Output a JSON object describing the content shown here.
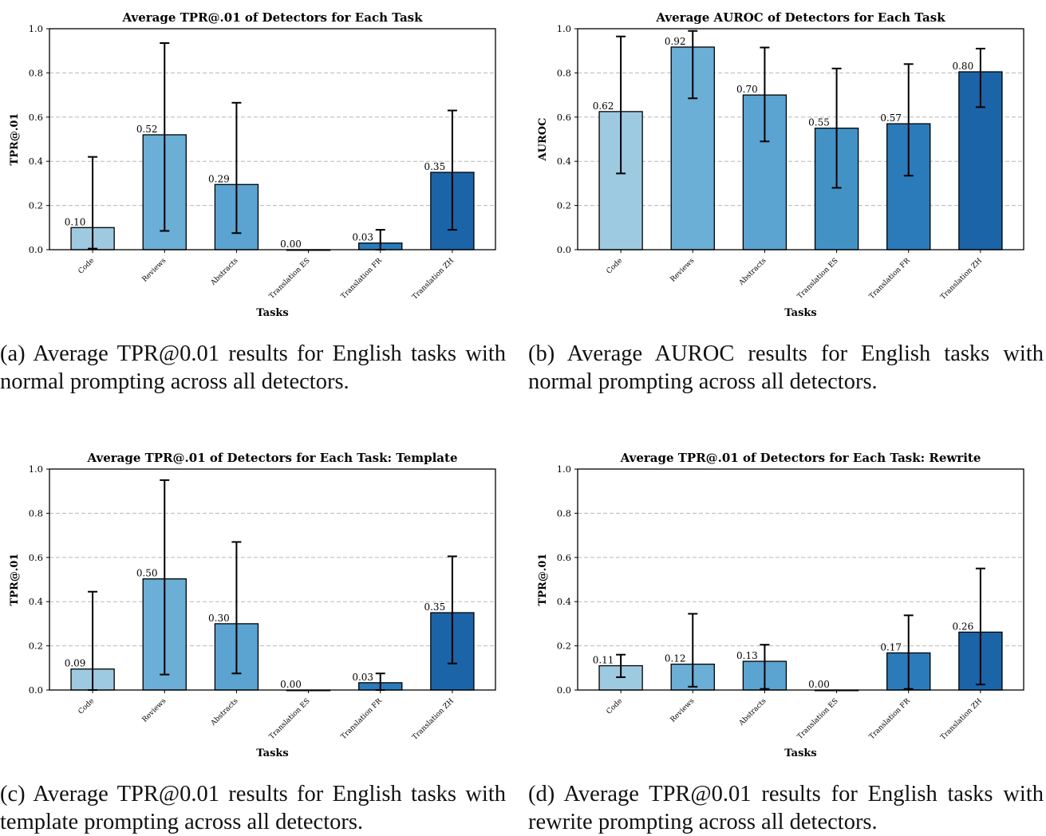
{
  "chart_data": [
    {
      "type": "bar",
      "title": "Average TPR@.01 of Detectors for Each Task",
      "xlabel": "Tasks",
      "ylabel": "TPR@.01",
      "ylim": [
        0,
        1.0
      ],
      "yticks": [
        "0.0",
        "0.2",
        "0.4",
        "0.6",
        "0.8",
        "1.0"
      ],
      "grid": "horizontal dashed",
      "categories": [
        "Code",
        "Reviews",
        "Abstracts",
        "Translation ES",
        "Translation FR",
        "Translation ZH"
      ],
      "values": [
        0.1,
        0.52,
        0.295,
        0.0,
        0.03,
        0.35
      ],
      "value_labels": [
        "0.10",
        "0.52",
        "0.29",
        "0.00",
        "0.03",
        "0.35"
      ],
      "error_low": [
        0.005,
        0.085,
        0.075,
        0.0,
        0.0,
        0.09
      ],
      "error_high": [
        0.42,
        0.935,
        0.665,
        0.0,
        0.09,
        0.63
      ],
      "colors": [
        "#9ecae1",
        "#6baed6",
        "#5ba3d0",
        "#4292c6",
        "#2b7bba",
        "#1c64a8"
      ],
      "caption": "(a) Average TPR@0.01 results for English tasks with normal prompting across all detectors."
    },
    {
      "type": "bar",
      "title": "Average AUROC of Detectors for Each Task",
      "xlabel": "Tasks",
      "ylabel": "AUROC",
      "ylim": [
        0,
        1.0
      ],
      "yticks": [
        "0.0",
        "0.2",
        "0.4",
        "0.6",
        "0.8",
        "1.0"
      ],
      "grid": "horizontal dashed",
      "categories": [
        "Code",
        "Reviews",
        "Abstracts",
        "Translation ES",
        "Translation FR",
        "Translation ZH"
      ],
      "values": [
        0.625,
        0.917,
        0.7,
        0.55,
        0.57,
        0.805
      ],
      "value_labels": [
        "0.62",
        "0.92",
        "0.70",
        "0.55",
        "0.57",
        "0.80"
      ],
      "error_low": [
        0.345,
        0.685,
        0.49,
        0.28,
        0.335,
        0.645
      ],
      "error_high": [
        0.965,
        0.99,
        0.915,
        0.82,
        0.84,
        0.91
      ],
      "colors": [
        "#9ecae1",
        "#6baed6",
        "#5ba3d0",
        "#4292c6",
        "#2b7bba",
        "#1c64a8"
      ],
      "caption": "(b) Average AUROC results for English tasks with normal prompting across all detectors."
    },
    {
      "type": "bar",
      "title": "Average TPR@.01 of Detectors for Each Task: Template",
      "xlabel": "Tasks",
      "ylabel": "TPR@.01",
      "ylim": [
        0,
        1.0
      ],
      "yticks": [
        "0.0",
        "0.2",
        "0.4",
        "0.6",
        "0.8",
        "1.0"
      ],
      "grid": "horizontal dashed",
      "categories": [
        "Code",
        "Reviews",
        "Abstracts",
        "Translation ES",
        "Translation FR",
        "Translation ZH"
      ],
      "values": [
        0.095,
        0.503,
        0.3,
        0.0,
        0.033,
        0.35
      ],
      "value_labels": [
        "0.09",
        "0.50",
        "0.30",
        "0.00",
        "0.03",
        "0.35"
      ],
      "error_low": [
        0.0,
        0.07,
        0.075,
        0.0,
        0.0,
        0.12
      ],
      "error_high": [
        0.445,
        0.95,
        0.67,
        0.0,
        0.075,
        0.605
      ],
      "colors": [
        "#9ecae1",
        "#6baed6",
        "#5ba3d0",
        "#4292c6",
        "#2b7bba",
        "#1c64a8"
      ],
      "caption": "(c) Average TPR@0.01 results for English tasks with template prompting across all detectors."
    },
    {
      "type": "bar",
      "title": "Average TPR@.01 of Detectors for Each Task: Rewrite",
      "xlabel": "Tasks",
      "ylabel": "TPR@.01",
      "ylim": [
        0,
        1.0
      ],
      "yticks": [
        "0.0",
        "0.2",
        "0.4",
        "0.6",
        "0.8",
        "1.0"
      ],
      "grid": "horizontal dashed",
      "categories": [
        "Code",
        "Reviews",
        "Abstracts",
        "Translation ES",
        "Translation FR",
        "Translation ZH"
      ],
      "values": [
        0.11,
        0.117,
        0.13,
        0.0,
        0.168,
        0.262
      ],
      "value_labels": [
        "0.11",
        "0.12",
        "0.13",
        "0.00",
        "0.17",
        "0.26"
      ],
      "error_low": [
        0.058,
        0.015,
        0.005,
        0.0,
        0.005,
        0.025
      ],
      "error_high": [
        0.16,
        0.345,
        0.205,
        0.0,
        0.338,
        0.55
      ],
      "colors": [
        "#9ecae1",
        "#6baed6",
        "#5ba3d0",
        "#4292c6",
        "#2b7bba",
        "#1c64a8"
      ],
      "caption": "(d) Average TPR@0.01 results for English tasks with rewrite prompting across all detectors."
    }
  ]
}
